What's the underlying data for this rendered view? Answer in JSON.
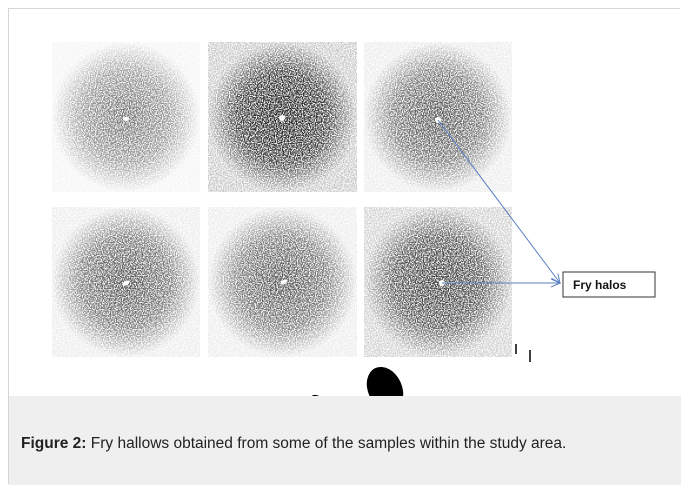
{
  "figure": {
    "label": "Fry halos",
    "caption_label": "Figure 2:",
    "caption": "Fry hallows obtained from some of the samples within the study area."
  }
}
